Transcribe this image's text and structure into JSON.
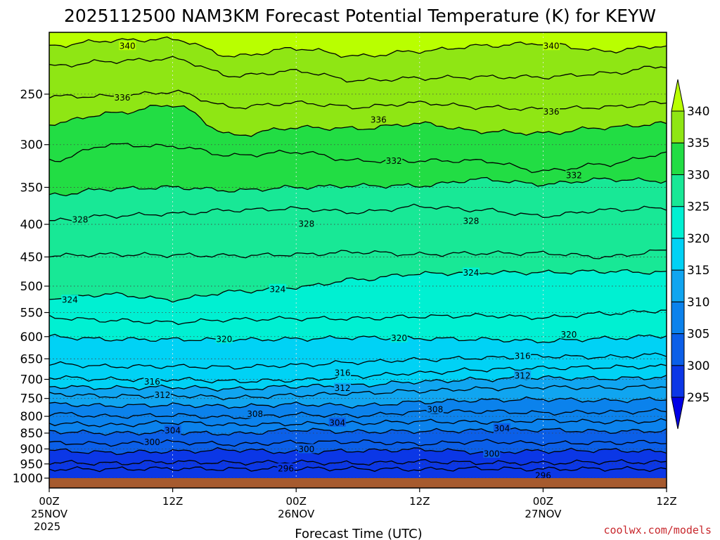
{
  "chart_data": {
    "type": "contour",
    "title": "2025112500 NAM3KM Forecast Potential Temperature (K) for KEYW",
    "xlabel": "Forecast Time (UTC)",
    "ylabel": "",
    "credit": "coolwx.com/models",
    "x_ticks": [
      {
        "hour": 0,
        "line1": "00Z",
        "line2": "25NOV",
        "line3": "2025"
      },
      {
        "hour": 12,
        "line1": "12Z",
        "line2": "",
        "line3": ""
      },
      {
        "hour": 24,
        "line1": "00Z",
        "line2": "26NOV",
        "line3": ""
      },
      {
        "hour": 36,
        "line1": "12Z",
        "line2": "",
        "line3": ""
      },
      {
        "hour": 48,
        "line1": "00Z",
        "line2": "27NOV",
        "line3": ""
      },
      {
        "hour": 60,
        "line1": "12Z",
        "line2": "",
        "line3": ""
      }
    ],
    "x_range_hours": [
      0,
      60
    ],
    "y_axis": "pressure (hPa), log scale, inverted",
    "y_ticks": [
      250,
      300,
      350,
      400,
      450,
      500,
      550,
      600,
      650,
      700,
      750,
      800,
      850,
      900,
      950,
      1000
    ],
    "y_range": [
      200,
      1000
    ],
    "grid": "dotted",
    "colorbar": {
      "placement": "right",
      "levels": [
        295,
        300,
        305,
        310,
        315,
        320,
        325,
        330,
        335,
        340
      ],
      "colors": [
        "#0000e6",
        "#0b37e6",
        "#0b5fe8",
        "#0b82ec",
        "#10a5f0",
        "#00d2f5",
        "#00f0d2",
        "#18e896",
        "#22dd44",
        "#8fe614",
        "#b9ff00"
      ],
      "extend": "both"
    },
    "isentropes": [
      {
        "theta": 296,
        "pressure": [
          968,
          968,
          966,
          968,
          966,
          967,
          969,
          966,
          968,
          967,
          969
        ]
      },
      {
        "theta": 298,
        "pressure": [
          945,
          948,
          943,
          946,
          944,
          948,
          942,
          946,
          947,
          943,
          945
        ]
      },
      {
        "theta": 300,
        "pressure": [
          905,
          912,
          908,
          903,
          911,
          906,
          902,
          910,
          907,
          904,
          909
        ]
      },
      {
        "theta": 302,
        "pressure": [
          880,
          884,
          878,
          885,
          879,
          877,
          884,
          876,
          882,
          880,
          878
        ]
      },
      {
        "theta": 304,
        "pressure": [
          845,
          850,
          848,
          852,
          840,
          846,
          844,
          842,
          840,
          845,
          843
        ]
      },
      {
        "theta": 306,
        "pressure": [
          820,
          826,
          818,
          825,
          822,
          820,
          815,
          817,
          812,
          816,
          814
        ]
      },
      {
        "theta": 308,
        "pressure": [
          792,
          800,
          797,
          803,
          795,
          798,
          788,
          786,
          790,
          788,
          785
        ]
      },
      {
        "theta": 310,
        "pressure": [
          765,
          770,
          768,
          772,
          766,
          770,
          760,
          755,
          752,
          756,
          752
        ]
      },
      {
        "theta": 312,
        "pressure": [
          738,
          744,
          742,
          748,
          741,
          736,
          730,
          724,
          720,
          722,
          718
        ]
      },
      {
        "theta": 314,
        "pressure": [
          718,
          722,
          720,
          725,
          718,
          715,
          706,
          700,
          696,
          698,
          695
        ]
      },
      {
        "theta": 316,
        "pressure": [
          695,
          700,
          700,
          705,
          702,
          692,
          684,
          676,
          672,
          670,
          668
        ]
      },
      {
        "theta": 318,
        "pressure": [
          662,
          668,
          668,
          670,
          665,
          658,
          652,
          648,
          644,
          646,
          640
        ]
      },
      {
        "theta": 320,
        "pressure": [
          600,
          606,
          606,
          607,
          605,
          602,
          604,
          606,
          610,
          604,
          598
        ]
      },
      {
        "theta": 322,
        "pressure": [
          560,
          566,
          570,
          564,
          562,
          562,
          558,
          556,
          560,
          552,
          546
        ]
      },
      {
        "theta": 324,
        "pressure": [
          522,
          515,
          525,
          510,
          502,
          488,
          478,
          476,
          476,
          474,
          476
        ]
      },
      {
        "theta": 326,
        "pressure": [
          448,
          446,
          447,
          448,
          446,
          442,
          446,
          444,
          444,
          450,
          440
        ]
      },
      {
        "theta": 328,
        "pressure": [
          395,
          388,
          385,
          380,
          378,
          383,
          375,
          380,
          388,
          380,
          377
        ]
      },
      {
        "theta": 330,
        "pressure": [
          360,
          352,
          350,
          354,
          350,
          348,
          348,
          340,
          346,
          340,
          342
        ]
      },
      {
        "theta": 332,
        "pressure": [
          318,
          300,
          302,
          312,
          308,
          318,
          318,
          318,
          330,
          322,
          310
        ]
      },
      {
        "theta": 334,
        "pressure": [
          278,
          268,
          260,
          290,
          282,
          283,
          278,
          286,
          288,
          282,
          278
        ]
      },
      {
        "theta": 336,
        "pressure": [
          252,
          252,
          248,
          262,
          258,
          262,
          258,
          262,
          264,
          262,
          258
        ]
      },
      {
        "theta": 338,
        "pressure": [
          226,
          222,
          220,
          234,
          230,
          238,
          236,
          235,
          235,
          232,
          226
        ]
      },
      {
        "theta": 340,
        "pressure": [
          210,
          206,
          205,
          218,
          212,
          218,
          214,
          210,
          208,
          214,
          210
        ]
      }
    ],
    "contour_labels": [
      {
        "text": "340",
        "hour": 7.6,
        "pressure": 210
      },
      {
        "text": "340",
        "hour": 48.8,
        "pressure": 210
      },
      {
        "text": "336",
        "hour": 7.1,
        "pressure": 253
      },
      {
        "text": "336",
        "hour": 32.0,
        "pressure": 274
      },
      {
        "text": "336",
        "hour": 48.8,
        "pressure": 266
      },
      {
        "text": "332",
        "hour": 33.5,
        "pressure": 318
      },
      {
        "text": "332",
        "hour": 51.0,
        "pressure": 335
      },
      {
        "text": "328",
        "hour": 3.0,
        "pressure": 393
      },
      {
        "text": "328",
        "hour": 25.0,
        "pressure": 399
      },
      {
        "text": "328",
        "hour": 41.0,
        "pressure": 395
      },
      {
        "text": "324",
        "hour": 2.0,
        "pressure": 525
      },
      {
        "text": "324",
        "hour": 22.2,
        "pressure": 505
      },
      {
        "text": "324",
        "hour": 41.0,
        "pressure": 476
      },
      {
        "text": "320",
        "hour": 17.0,
        "pressure": 605
      },
      {
        "text": "320",
        "hour": 34.0,
        "pressure": 603
      },
      {
        "text": "320",
        "hour": 50.5,
        "pressure": 595
      },
      {
        "text": "316",
        "hour": 10.0,
        "pressure": 705
      },
      {
        "text": "316",
        "hour": 28.5,
        "pressure": 683
      },
      {
        "text": "316",
        "hour": 46.0,
        "pressure": 643
      },
      {
        "text": "312",
        "hour": 11.0,
        "pressure": 740
      },
      {
        "text": "312",
        "hour": 28.5,
        "pressure": 722
      },
      {
        "text": "312",
        "hour": 46.0,
        "pressure": 690
      },
      {
        "text": "308",
        "hour": 20.0,
        "pressure": 793
      },
      {
        "text": "308",
        "hour": 37.5,
        "pressure": 780
      },
      {
        "text": "304",
        "hour": 12.0,
        "pressure": 841
      },
      {
        "text": "304",
        "hour": 28.0,
        "pressure": 818
      },
      {
        "text": "304",
        "hour": 44.0,
        "pressure": 835
      },
      {
        "text": "300",
        "hour": 10.0,
        "pressure": 877
      },
      {
        "text": "300",
        "hour": 25.0,
        "pressure": 900
      },
      {
        "text": "300",
        "hour": 43.0,
        "pressure": 915
      },
      {
        "text": "296",
        "hour": 23.0,
        "pressure": 965
      },
      {
        "text": "296",
        "hour": 48.0,
        "pressure": 990
      }
    ]
  }
}
